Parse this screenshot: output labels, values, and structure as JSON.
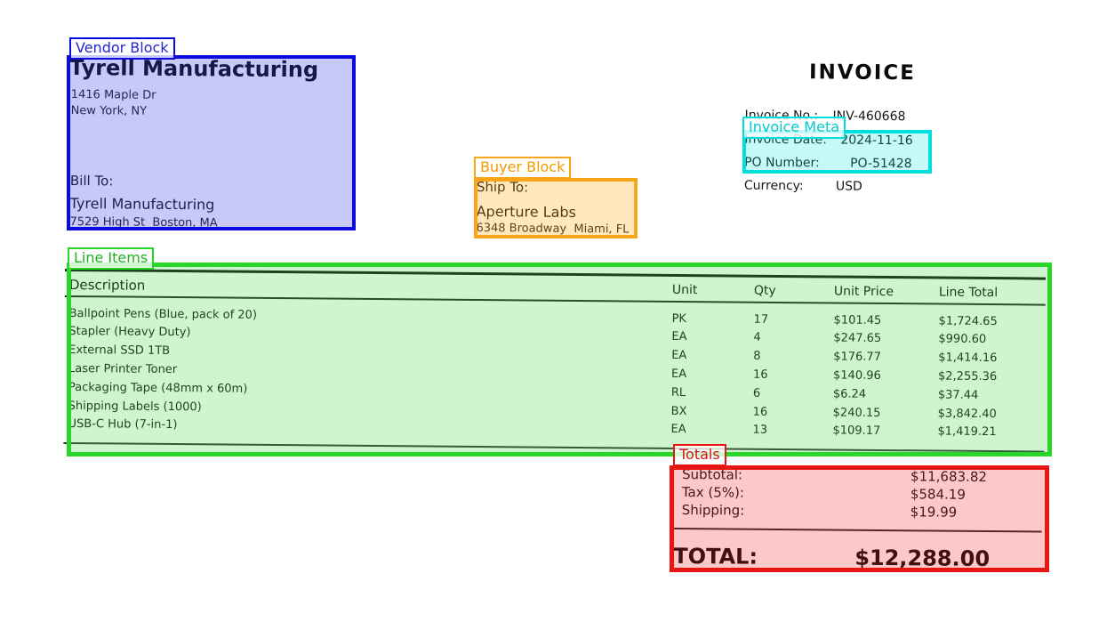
{
  "annotations": [
    {
      "id": "vendor-block",
      "label": "Vendor Block",
      "border": "#0b0bdf",
      "fill": "rgba(55,55,230,0.27)",
      "label_color": "#2525cc"
    },
    {
      "id": "buyer-block",
      "label": "Buyer Block",
      "border": "#f8a51b",
      "fill": "rgba(255,166,0,0.26)",
      "label_color": "#ef9b00"
    },
    {
      "id": "invoice-meta",
      "label": "Invoice Meta",
      "border": "#00dede",
      "fill": "rgba(0,228,228,0.22)",
      "label_color": "#00cccc"
    },
    {
      "id": "line-items",
      "label": "Line Items",
      "border": "#28d628",
      "fill": "rgba(40,200,40,0.22)",
      "label_color": "#1fb41f"
    },
    {
      "id": "totals",
      "label": "Totals",
      "border": "#e91515",
      "fill": "rgba(240,30,30,0.24)",
      "label_color": "#d41414"
    }
  ],
  "document": {
    "title": "INVOICE",
    "vendor": {
      "name": "Tyrell Manufacturing",
      "address_line1": "1416 Maple Dr",
      "address_line2": "New York, NY",
      "bill_to_label": "Bill To:",
      "bill_to_name": "Tyrell Manufacturing",
      "bill_to_address": "7529 High St  Boston, MA"
    },
    "buyer": {
      "ship_to_label": "Ship To:",
      "name": "Aperture Labs",
      "address": "6348 Broadway  Miami, FL"
    },
    "meta_rows": [
      {
        "label": "Invoice No.:",
        "value": "INV-460668"
      },
      {
        "label": "Invoice Date:",
        "value": "2024-11-16"
      },
      {
        "label": "PO Number:",
        "value": "PO-51428"
      },
      {
        "label": "Currency:",
        "value": "USD"
      }
    ],
    "line_items": {
      "headers": [
        "Description",
        "Unit",
        "Qty",
        "Unit Price",
        "Line Total"
      ],
      "rows": [
        [
          "Ballpoint Pens (Blue, pack of 20)",
          "PK",
          "17",
          "$101.45",
          "$1,724.65"
        ],
        [
          "Stapler (Heavy Duty)",
          "EA",
          "4",
          "$247.65",
          "$990.60"
        ],
        [
          "External SSD 1TB",
          "EA",
          "8",
          "$176.77",
          "$1,414.16"
        ],
        [
          "Laser Printer Toner",
          "EA",
          "16",
          "$140.96",
          "$2,255.36"
        ],
        [
          "Packaging Tape (48mm x 60m)",
          "RL",
          "6",
          "$6.24",
          "$37.44"
        ],
        [
          "Shipping Labels (1000)",
          "BX",
          "16",
          "$240.15",
          "$3,842.40"
        ],
        [
          "USB-C Hub (7-in-1)",
          "EA",
          "13",
          "$109.17",
          "$1,419.21"
        ]
      ]
    },
    "totals": {
      "rows": [
        {
          "label": "Subtotal:",
          "value": "$11,683.82"
        },
        {
          "label": "Tax (5%):",
          "value": "$584.19"
        },
        {
          "label": "Shipping:",
          "value": "$19.99"
        }
      ],
      "total_label": "TOTAL:",
      "total_value": "$12,288.00"
    }
  }
}
